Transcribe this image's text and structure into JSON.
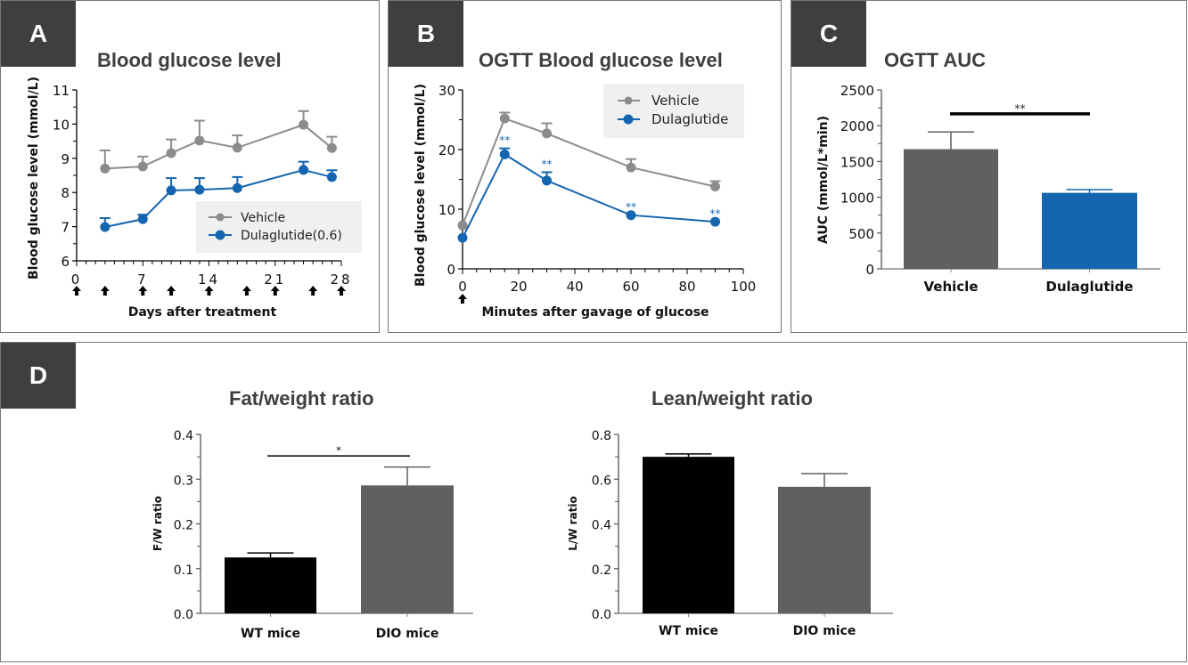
{
  "panels": {
    "A": {
      "tag": "A",
      "title": "Blood glucose level"
    },
    "B": {
      "tag": "B",
      "title": "OGTT Blood glucose level"
    },
    "C": {
      "tag": "C",
      "title": "OGTT AUC"
    },
    "D": {
      "tag": "D",
      "title_left": "Fat/weight ratio",
      "title_right": "Lean/weight ratio"
    }
  },
  "colors": {
    "vehicle": "#8c8c8c",
    "dulaglutide": "#1565b0",
    "bar_gray": "#5f605f",
    "bar_black": "#000000",
    "tag_bg": "#3f3f3f"
  },
  "chart_data": [
    {
      "id": "A",
      "type": "line",
      "title": "Blood glucose level",
      "xlabel": "Days after treatment",
      "ylabel": "Blood glucose level (mmol/L)",
      "xlim": [
        0,
        28
      ],
      "ylim": [
        6,
        11
      ],
      "xticks": [
        "0",
        "7",
        "14",
        "21",
        "28"
      ],
      "xtick_values": [
        0,
        7,
        14,
        21,
        28
      ],
      "yticks": [
        "6",
        "7",
        "8",
        "9",
        "10",
        "11"
      ],
      "ytick_values": [
        6,
        7,
        8,
        9,
        10,
        11
      ],
      "dosing_arrows_days": [
        0,
        3,
        7,
        10,
        14,
        18,
        21,
        25,
        28
      ],
      "legend": {
        "position": "bottom-right",
        "entries": [
          "Vehicle",
          "Dulaglutide(0.6)"
        ]
      },
      "series": [
        {
          "name": "Vehicle",
          "x": [
            3,
            7,
            10,
            13,
            17,
            24,
            27
          ],
          "y": [
            8.7,
            8.76,
            9.15,
            9.52,
            9.31,
            9.98,
            9.3
          ],
          "err": [
            0.53,
            0.29,
            0.4,
            0.58,
            0.36,
            0.4,
            0.33
          ]
        },
        {
          "name": "Dulaglutide(0.6)",
          "x": [
            3,
            7,
            10,
            13,
            17,
            24,
            27
          ],
          "y": [
            6.99,
            7.22,
            8.06,
            8.08,
            8.13,
            8.66,
            8.45
          ],
          "err": [
            0.26,
            0.13,
            0.36,
            0.34,
            0.32,
            0.24,
            0.2
          ]
        }
      ]
    },
    {
      "id": "B",
      "type": "line",
      "title": "OGTT Blood glucose level",
      "xlabel": "Minutes after gavage of glucose",
      "ylabel": "Blood glucose level (mmol/L)",
      "xlim": [
        0,
        100
      ],
      "ylim": [
        0,
        30
      ],
      "xticks": [
        "0",
        "20",
        "40",
        "60",
        "80",
        "100"
      ],
      "xtick_values": [
        0,
        20,
        40,
        60,
        80,
        100
      ],
      "yticks": [
        "0",
        "10",
        "20",
        "30"
      ],
      "ytick_values": [
        0,
        10,
        20,
        30
      ],
      "dosing_arrows_minutes": [
        0
      ],
      "legend": {
        "position": "top-right",
        "entries": [
          "Vehicle",
          "Dulaglutide"
        ]
      },
      "significance": {
        "label": "**",
        "series": "Dulaglutide",
        "x": [
          15,
          30,
          60,
          90
        ]
      },
      "series": [
        {
          "name": "Vehicle",
          "x": [
            0,
            15,
            30,
            60,
            90
          ],
          "y": [
            7.3,
            25.2,
            22.7,
            17.0,
            13.8
          ],
          "err": [
            0,
            1.0,
            1.7,
            1.4,
            0.9
          ]
        },
        {
          "name": "Dulaglutide",
          "x": [
            0,
            15,
            30,
            60,
            90
          ],
          "y": [
            5.2,
            19.2,
            14.8,
            9.0,
            7.9
          ],
          "err": [
            0,
            1.0,
            1.4,
            0,
            0
          ]
        }
      ]
    },
    {
      "id": "C",
      "type": "bar",
      "title": "OGTT AUC",
      "xlabel": "",
      "ylabel": "AUC (mmol/L*min)",
      "ylim": [
        0,
        2500
      ],
      "yticks": [
        "0",
        "500",
        "1000",
        "1500",
        "2000",
        "2500"
      ],
      "ytick_values": [
        0,
        500,
        1000,
        1500,
        2000,
        2500
      ],
      "categories": [
        "Vehicle",
        "Dulaglutide"
      ],
      "values": [
        1672,
        1062
      ],
      "err": [
        240,
        45
      ],
      "significance": {
        "label": "**",
        "level": 2165
      }
    },
    {
      "id": "D-fat",
      "type": "bar",
      "title": "Fat/weight ratio",
      "xlabel": "",
      "ylabel": "F/W ratio",
      "ylim": [
        0,
        0.4
      ],
      "yticks": [
        "0.0",
        "0.1",
        "0.2",
        "0.3",
        "0.4"
      ],
      "ytick_values": [
        0,
        0.1,
        0.2,
        0.3,
        0.4
      ],
      "categories": [
        "WT mice",
        "DIO mice"
      ],
      "values": [
        0.125,
        0.286
      ],
      "err": [
        0.01,
        0.041
      ],
      "significance": {
        "label": "*",
        "level": 0.352
      }
    },
    {
      "id": "D-lean",
      "type": "bar",
      "title": "Lean/weight ratio",
      "xlabel": "",
      "ylabel": "L/W ratio",
      "ylim": [
        0,
        0.8
      ],
      "yticks": [
        "0.0",
        "0.2",
        "0.4",
        "0.6",
        "0.8"
      ],
      "ytick_values": [
        0,
        0.2,
        0.4,
        0.6,
        0.8
      ],
      "categories": [
        "WT mice",
        "DIO mice"
      ],
      "values": [
        0.7,
        0.566
      ],
      "err": [
        0.013,
        0.059
      ]
    }
  ]
}
